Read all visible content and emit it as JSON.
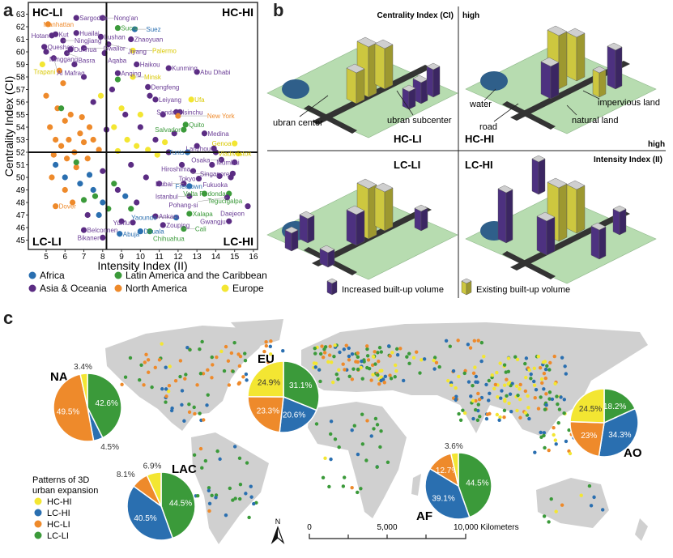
{
  "panel_labels": {
    "a": "a",
    "b": "b",
    "c": "c"
  },
  "colors": {
    "Africa": "#2a6fb0",
    "Asia & Oceania": "#5b2c83",
    "Latin America and the Caribbean": "#3b9a3a",
    "North America": "#ee8a2b",
    "Europe": "#f3e632",
    "HC-HI": "#f3e632",
    "LC-HI": "#2a6fb0",
    "HC-LI": "#ee8a2b",
    "LC-LI": "#3b9a3a",
    "land": "#d0d0d0",
    "plate": "#b7dcb0",
    "road": "#333333",
    "water": "#2f5f8a"
  },
  "chart_data": [
    {
      "type": "scatter",
      "panel": "a",
      "xlabel": "Intensity Index (II)",
      "ylabel": "Centrality Index (CI)",
      "xlim": [
        4.1,
        16.3
      ],
      "ylim": [
        44.4,
        63.5
      ],
      "xticks": [
        5,
        6,
        7,
        8,
        9,
        10,
        11,
        12,
        13,
        14,
        15,
        16
      ],
      "yticks": [
        45,
        46,
        47,
        48,
        49,
        50,
        51,
        52,
        53,
        54,
        55,
        56,
        57,
        58,
        59,
        60,
        61,
        62,
        63
      ],
      "thresholds": {
        "x": 8.2,
        "y": 52
      },
      "quadrant_labels": [
        "HC-LI",
        "HC-HI",
        "LC-LI",
        "LC-HI"
      ],
      "grid": false,
      "legend": {
        "placement": "bottom",
        "entries": [
          "Africa",
          "Latin America and the Caribbean",
          "Asia & Oceania",
          "North America",
          "Europe"
        ]
      },
      "labeled_points": [
        [
          "Sargodha",
          6.6,
          62.7,
          "AO"
        ],
        [
          "Nong'an",
          8.0,
          62.7,
          "AO"
        ],
        [
          "Manhattan",
          5.1,
          62.2,
          "NA"
        ],
        [
          "Sucre",
          8.8,
          61.9,
          "LAC"
        ],
        [
          "Suez",
          9.7,
          61.8,
          "AF"
        ],
        [
          "Huailai",
          6.6,
          61.5,
          "AO"
        ],
        [
          "Kut",
          5.5,
          61.4,
          "AO"
        ],
        [
          "Hotan",
          5.3,
          61.3,
          "AO"
        ],
        [
          "Lushan",
          7.9,
          61.2,
          "AO"
        ],
        [
          "Ningjiang",
          5.9,
          60.9,
          "AO"
        ],
        [
          "Zhaoyuan",
          9.5,
          61.0,
          "AO"
        ],
        [
          "Queshan",
          4.9,
          60.4,
          "AO"
        ],
        [
          "Dunhua",
          6.3,
          60.2,
          "AO"
        ],
        [
          "Gwalior",
          7.0,
          60.3,
          "AO"
        ],
        [
          "Jiyang",
          8.3,
          60.6,
          "AO"
        ],
        [
          "Palermo",
          9.6,
          60.1,
          "EU"
        ],
        [
          "Minggang",
          5.0,
          60.0,
          "AO"
        ],
        [
          "Basra",
          6.1,
          59.9,
          "AO"
        ],
        [
          "Aqaba",
          8.1,
          59.9,
          "AO"
        ],
        [
          "Al Mafraq",
          5.4,
          59.5,
          "AO"
        ],
        [
          "Trapani",
          4.8,
          59.0,
          "EU"
        ],
        [
          "Haikou",
          9.8,
          59.0,
          "AO"
        ],
        [
          "Kunming",
          11.5,
          58.7,
          "AO"
        ],
        [
          "Abu Dhabi",
          13.0,
          58.4,
          "AO"
        ],
        [
          "Anqing",
          8.8,
          58.3,
          "AO"
        ],
        [
          "Minsk",
          9.6,
          58.0,
          "EU"
        ],
        [
          "Dengfeng",
          10.4,
          57.2,
          "AO"
        ],
        [
          "Leiyang",
          10.8,
          56.2,
          "AO"
        ],
        [
          "Ufa",
          12.7,
          56.2,
          "EU"
        ],
        [
          "Hsinchu",
          11.9,
          55.2,
          "AO"
        ],
        [
          "Sendai",
          12.1,
          55.2,
          "AO"
        ],
        [
          "New York",
          12.0,
          54.9,
          "NA"
        ],
        [
          "Quito",
          12.4,
          54.2,
          "LAC"
        ],
        [
          "Salvador",
          12.3,
          53.8,
          "LAC"
        ],
        [
          "Medina",
          13.4,
          53.5,
          "AO"
        ],
        [
          "Genoa",
          15.0,
          52.7,
          "EU"
        ],
        [
          "Lanzhou",
          13.9,
          52.3,
          "AO"
        ],
        [
          "Vladivostok",
          15.2,
          51.9,
          "EU"
        ],
        [
          "Tunis",
          12.5,
          52.0,
          "AF"
        ],
        [
          "Osaka",
          14.3,
          51.4,
          "AO"
        ],
        [
          "Mumbai",
          15.0,
          51.2,
          "AO"
        ],
        [
          "Singapore",
          14.9,
          50.3,
          "AO"
        ],
        [
          "Tokyo",
          13.1,
          49.9,
          "AO"
        ],
        [
          "Fukuoka",
          14.8,
          50.0,
          "AO"
        ],
        [
          "Hiroshima",
          14.2,
          50.1,
          "AO"
        ],
        [
          "Dubai",
          12.3,
          49.5,
          "AO"
        ],
        [
          "Freetown",
          12.6,
          49.3,
          "AF"
        ],
        [
          "Volta Redonda",
          14.7,
          48.7,
          "LAC"
        ],
        [
          "Istanbul",
          12.6,
          48.5,
          "AO"
        ],
        [
          "Tegucigalpa",
          13.4,
          48.7,
          "LAC"
        ],
        [
          "Pohang-si",
          14.6,
          48.4,
          "AO"
        ],
        [
          "Xalapa",
          12.6,
          47.1,
          "LAC"
        ],
        [
          "Daejeon",
          15.7,
          47.7,
          "AO"
        ],
        [
          "Dover",
          5.5,
          47.7,
          "NA"
        ],
        [
          "Ankara",
          10.8,
          46.9,
          "AO"
        ],
        [
          "Yaounde",
          11.9,
          46.8,
          "AF"
        ],
        [
          "Gwangju",
          14.7,
          46.5,
          "AO"
        ],
        [
          "Yunfu",
          9.6,
          46.4,
          "AO"
        ],
        [
          "Zouping",
          11.2,
          46.2,
          "AO"
        ],
        [
          "Belconnen",
          7.0,
          45.8,
          "AO"
        ],
        [
          "Cali",
          12.3,
          45.9,
          "LAC"
        ],
        [
          "Douala",
          10.0,
          45.7,
          "AF"
        ],
        [
          "Chihuahua",
          10.5,
          45.7,
          "LAC"
        ],
        [
          "Abuja",
          8.9,
          45.5,
          "AF"
        ],
        [
          "Bikaner",
          8.0,
          45.2,
          "AO"
        ]
      ],
      "points": [
        [
          5.2,
          54,
          "NA"
        ],
        [
          5.5,
          53,
          "NA"
        ],
        [
          5.8,
          52.5,
          "NA"
        ],
        [
          6.0,
          54.5,
          "NA"
        ],
        [
          6.2,
          53,
          "NA"
        ],
        [
          6.5,
          52,
          "NA"
        ],
        [
          6.8,
          53.5,
          "NA"
        ],
        [
          7.0,
          52.8,
          "NA"
        ],
        [
          5.4,
          51.8,
          "NA"
        ],
        [
          6.1,
          51.5,
          "NA"
        ],
        [
          6.6,
          50.8,
          "NA"
        ],
        [
          7.2,
          51.5,
          "NA"
        ],
        [
          5.0,
          56.5,
          "NA"
        ],
        [
          5.6,
          55.5,
          "NA"
        ],
        [
          6.3,
          55,
          "NA"
        ],
        [
          7.5,
          53,
          "NA"
        ],
        [
          7.8,
          52.2,
          "NA"
        ],
        [
          5.3,
          50,
          "NA"
        ],
        [
          6.0,
          49,
          "NA"
        ],
        [
          6.4,
          48,
          "NA"
        ],
        [
          5.9,
          57.5,
          "NA"
        ],
        [
          6.9,
          54.8,
          "NA"
        ],
        [
          7.3,
          54,
          "NA"
        ],
        [
          5.7,
          58.5,
          "NA"
        ],
        [
          8.5,
          57,
          "AO"
        ],
        [
          9.2,
          55,
          "AO"
        ],
        [
          10.0,
          54,
          "AO"
        ],
        [
          10.8,
          53,
          "AO"
        ],
        [
          11.5,
          52,
          "AO"
        ],
        [
          12.2,
          51,
          "AO"
        ],
        [
          13.0,
          52.5,
          "AO"
        ],
        [
          9.5,
          51,
          "AO"
        ],
        [
          10.3,
          50,
          "AO"
        ],
        [
          11.0,
          49.5,
          "AO"
        ],
        [
          8.8,
          49,
          "AO"
        ],
        [
          9.8,
          48,
          "AO"
        ],
        [
          7.5,
          56,
          "AO"
        ],
        [
          7.0,
          58,
          "AO"
        ],
        [
          6.5,
          59,
          "AO"
        ],
        [
          8.2,
          53.8,
          "AO"
        ],
        [
          12.8,
          50.5,
          "AO"
        ],
        [
          13.8,
          51,
          "AO"
        ],
        [
          11.2,
          55,
          "AO"
        ],
        [
          10.5,
          56.5,
          "AO"
        ],
        [
          9.0,
          46.5,
          "AO"
        ],
        [
          7.2,
          47,
          "AO"
        ],
        [
          8.0,
          50.5,
          "AO"
        ],
        [
          11.8,
          53.5,
          "AO"
        ],
        [
          14.0,
          52,
          "AO"
        ],
        [
          8.6,
          54,
          "EU"
        ],
        [
          9.3,
          53,
          "EU"
        ],
        [
          9.8,
          52.5,
          "EU"
        ],
        [
          10.4,
          52.2,
          "EU"
        ],
        [
          10.9,
          51.8,
          "EU"
        ],
        [
          9.0,
          55.5,
          "EU"
        ],
        [
          8.8,
          52.1,
          "EU"
        ],
        [
          11.3,
          52.8,
          "EU"
        ],
        [
          10.0,
          55,
          "EU"
        ],
        [
          7.9,
          56.5,
          "EU"
        ],
        [
          7.5,
          49,
          "AF"
        ],
        [
          8.0,
          48,
          "AF"
        ],
        [
          7.8,
          47,
          "AF"
        ],
        [
          6.8,
          49.5,
          "AF"
        ],
        [
          7.3,
          50.2,
          "AF"
        ],
        [
          9.2,
          48.5,
          "AF"
        ],
        [
          5.5,
          51,
          "AF"
        ],
        [
          6.0,
          50,
          "AF"
        ],
        [
          7.6,
          48.5,
          "LAC"
        ],
        [
          8.3,
          47.5,
          "LAC"
        ],
        [
          8.6,
          49.5,
          "LAC"
        ],
        [
          7.0,
          48.2,
          "LAC"
        ],
        [
          9.5,
          47.5,
          "LAC"
        ],
        [
          6.6,
          51.2,
          "LAC"
        ],
        [
          5.8,
          55.5,
          "LAC"
        ],
        [
          8.8,
          57.8,
          "LAC"
        ]
      ]
    },
    {
      "type": "pie",
      "panel": "c",
      "categories": [
        "LC-LI",
        "LC-HI",
        "HC-LI",
        "HC-HI"
      ],
      "pies": [
        {
          "name": "NA",
          "values": [
            42.6,
            4.5,
            49.5,
            3.4
          ],
          "labels": [
            "42.6%",
            "4.5%",
            "49.5%",
            "3.4%"
          ]
        },
        {
          "name": "EU",
          "values": [
            31.1,
            20.6,
            23.3,
            24.9
          ],
          "labels": [
            "31.1%",
            "20.6%",
            "23.3%",
            "24.9%"
          ]
        },
        {
          "name": "LAC",
          "values": [
            44.5,
            40.5,
            8.1,
            6.9
          ],
          "labels": [
            "44.5%",
            "40.5%",
            "8.1%",
            "6.9%"
          ]
        },
        {
          "name": "AF",
          "values": [
            44.5,
            39.1,
            12.7,
            3.6
          ],
          "labels": [
            "44.5%",
            "39.1%",
            "12.7%",
            "3.6%"
          ]
        },
        {
          "name": "AO",
          "values": [
            18.2,
            34.3,
            23.0,
            24.5
          ],
          "labels": [
            "18.2%",
            "34.3%",
            "23%",
            "24.5%"
          ]
        }
      ]
    }
  ],
  "panel_b": {
    "y_axis": "Centrality Index (CI)",
    "y_high": "high",
    "x_axis": "Intensity Index (II)",
    "x_high": "high",
    "quadrants": [
      "HC-LI",
      "HC-HI",
      "LC-LI",
      "LC-HI"
    ],
    "annotations": {
      "urban_center": "ubran center",
      "urban_subcenter": "ubran subcenter",
      "water": "water",
      "impervious": "impervious land",
      "road": "road",
      "natural": "natural land"
    },
    "legend": {
      "increased": "Increased built-up volume",
      "existing": "Existing built-up volume"
    },
    "building_colors": {
      "increased": "#5b3a96",
      "existing": "#f1ea4a"
    }
  },
  "panel_c": {
    "legend_title_1": "Patterns of 3D",
    "legend_title_2": "urban expansion",
    "legend_items": [
      "HC-HI",
      "LC-HI",
      "HC-LI",
      "LC-LI"
    ],
    "north": "N",
    "scale": {
      "zero": "0",
      "mid": "5,000",
      "end": "10,000 Kilometers"
    }
  }
}
